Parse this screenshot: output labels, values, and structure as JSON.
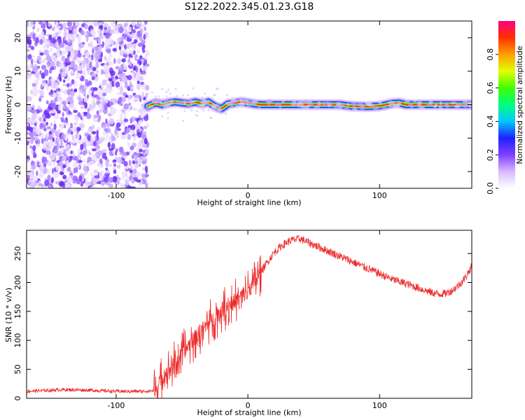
{
  "title": "S122.2022.345.01.23.G18",
  "chart_data": [
    {
      "type": "heatmap",
      "xlabel": "Height of straight line (km)",
      "ylabel": "Frequency (Hz)",
      "xlim": [
        -168,
        170
      ],
      "ylim": [
        -25,
        25
      ],
      "xticks": [
        -100,
        0,
        100
      ],
      "yticks": [
        -20,
        -10,
        0,
        10,
        20
      ],
      "noise_region_x": [
        -168,
        -76
      ],
      "signal_track": {
        "x": [
          -76,
          -70,
          -65,
          -60,
          -55,
          -50,
          -45,
          -40,
          -35,
          -30,
          -25,
          -20,
          -15,
          -10,
          -5,
          0,
          5,
          10,
          20,
          30,
          40,
          50,
          60,
          70,
          75,
          80,
          85,
          90,
          95,
          100,
          105,
          110,
          115,
          120,
          130,
          140,
          150,
          160,
          170
        ],
        "y": [
          -0.5,
          0.5,
          0.0,
          0.5,
          0.8,
          0.5,
          0.3,
          0.8,
          0.3,
          0.8,
          -0.5,
          -1.2,
          0.2,
          0.5,
          0.8,
          0.5,
          0.2,
          0.0,
          0.0,
          0.0,
          0.0,
          0.0,
          0.0,
          0.0,
          -0.3,
          -0.5,
          -0.5,
          -0.6,
          -0.5,
          -0.4,
          0.0,
          0.4,
          0.5,
          0.0,
          0.0,
          0.0,
          0.0,
          0.0,
          0.0
        ]
      },
      "colorbar": {
        "label": "Normalized spectral amplitude",
        "range": [
          0.0,
          1.0
        ],
        "ticks": [
          0.0,
          0.2,
          0.4,
          0.6,
          0.8
        ],
        "colors": [
          "#ffffff",
          "#d8b8ff",
          "#8040ff",
          "#2020ff",
          "#00c8ff",
          "#00ff80",
          "#40ff00",
          "#e0ff00",
          "#ffa000",
          "#ff3000",
          "#ff0080"
        ]
      }
    },
    {
      "type": "line",
      "xlabel": "Height of straight line (km)",
      "ylabel": "SNR (10 * v/v)",
      "xlim": [
        -168,
        170
      ],
      "ylim": [
        0,
        290
      ],
      "xticks": [
        -100,
        0,
        100
      ],
      "yticks": [
        0,
        50,
        100,
        150,
        200,
        250
      ],
      "color": "#ee2a2a",
      "series": [
        {
          "x": [
            -168,
            -140,
            -120,
            -100,
            -80,
            -72,
            -68,
            -65,
            -60,
            -55,
            -50,
            -45,
            -40,
            -35,
            -30,
            -25,
            -20,
            -15,
            -10,
            -5,
            0,
            5,
            10,
            15,
            20,
            25,
            30,
            35,
            40,
            45,
            50,
            60,
            70,
            80,
            90,
            100,
            110,
            120,
            130,
            140,
            145,
            150,
            155,
            160,
            165,
            170
          ],
          "y": [
            12,
            15,
            14,
            12,
            12,
            13,
            22,
            35,
            50,
            62,
            75,
            92,
            105,
            118,
            130,
            140,
            152,
            160,
            168,
            175,
            185,
            200,
            218,
            236,
            252,
            262,
            270,
            274,
            275,
            270,
            265,
            255,
            245,
            235,
            225,
            215,
            205,
            198,
            190,
            182,
            180,
            181,
            186,
            195,
            208,
            228
          ]
        }
      ]
    }
  ]
}
